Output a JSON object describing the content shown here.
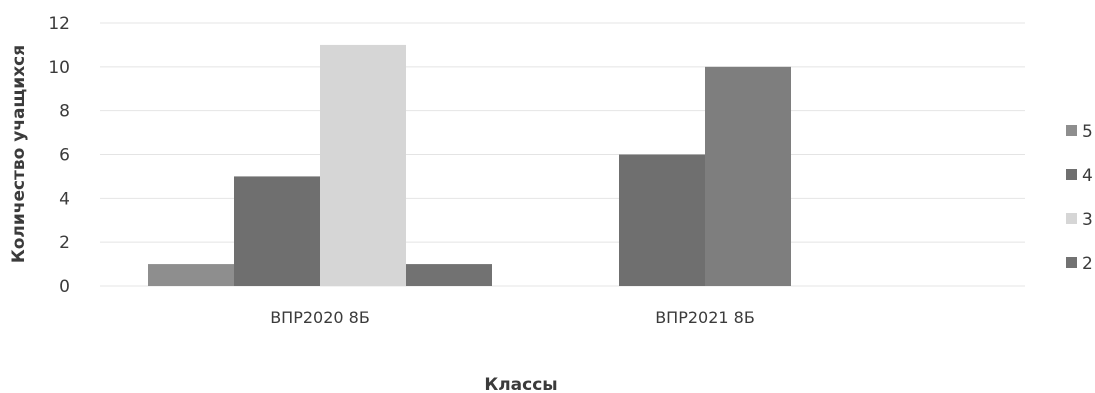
{
  "chart_data": {
    "type": "bar",
    "categories": [
      "ВПР2020 8Б",
      "ВПР2021 8Б"
    ],
    "series": [
      {
        "name": "5",
        "values": [
          1,
          0
        ],
        "color": "#8e8e8e"
      },
      {
        "name": "4",
        "values": [
          5,
          6
        ],
        "color": "#6f6f6f"
      },
      {
        "name": "3",
        "values": [
          11,
          10
        ],
        "color": "#d6d6d6"
      },
      {
        "name": "2",
        "values": [
          1,
          0
        ],
        "color": "#727272"
      }
    ],
    "bar_colors": [
      [
        "#8e8e8e",
        "#6f6f6f",
        "#d6d6d6",
        "#727272"
      ],
      [
        "#8e8e8e",
        "#6f6f6f",
        "#7e7e7e",
        "#727272"
      ]
    ],
    "title": "",
    "xlabel": "Классы",
    "ylabel": "Количество учащихся",
    "ylim": [
      0,
      12
    ],
    "yticks": [
      0,
      2,
      4,
      6,
      8,
      10,
      12
    ],
    "grid": true,
    "legend_position": "right"
  }
}
